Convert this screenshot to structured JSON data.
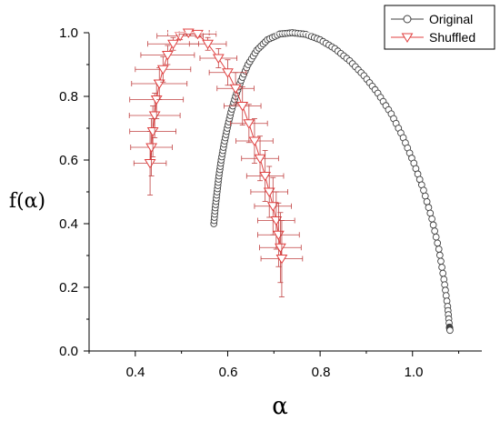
{
  "chart_data": {
    "type": "scatter",
    "title": "",
    "xlabel": "α",
    "ylabel": "f(α)",
    "xlim": [
      0.3,
      1.15
    ],
    "ylim": [
      0.0,
      1.0
    ],
    "x_ticks": [
      "0.4",
      "0.6",
      "0.8",
      "1.0"
    ],
    "y_ticks": [
      "0.0",
      "0.2",
      "0.4",
      "0.6",
      "0.8",
      "1.0"
    ],
    "grid": false,
    "legend_position": "top-right",
    "series": [
      {
        "name": "Original",
        "marker": "circle",
        "color": "#404040",
        "points": [
          [
            0.57,
            0.4
          ],
          [
            0.573,
            0.45
          ],
          [
            0.577,
            0.5
          ],
          [
            0.581,
            0.55
          ],
          [
            0.586,
            0.6
          ],
          [
            0.592,
            0.65
          ],
          [
            0.599,
            0.7
          ],
          [
            0.607,
            0.75
          ],
          [
            0.617,
            0.8
          ],
          [
            0.629,
            0.85
          ],
          [
            0.644,
            0.9
          ],
          [
            0.663,
            0.945
          ],
          [
            0.686,
            0.978
          ],
          [
            0.713,
            0.996
          ],
          [
            0.74,
            1.0
          ],
          [
            0.769,
            0.995
          ],
          [
            0.8,
            0.978
          ],
          [
            0.832,
            0.95
          ],
          [
            0.864,
            0.912
          ],
          [
            0.895,
            0.865
          ],
          [
            0.925,
            0.81
          ],
          [
            0.954,
            0.745
          ],
          [
            0.98,
            0.67
          ],
          [
            1.003,
            0.59
          ],
          [
            1.024,
            0.505
          ],
          [
            1.042,
            0.415
          ],
          [
            1.057,
            0.32
          ],
          [
            1.068,
            0.225
          ],
          [
            1.076,
            0.14
          ],
          [
            1.08,
            0.075
          ],
          [
            1.081,
            0.065
          ]
        ]
      },
      {
        "name": "Shuffled",
        "marker": "triangle-down",
        "color": "#e04040",
        "points": [
          [
            0.432,
            0.59,
            0.035,
            0.1
          ],
          [
            0.435,
            0.64,
            0.045,
            0.09
          ],
          [
            0.438,
            0.69,
            0.05,
            0.08
          ],
          [
            0.442,
            0.74,
            0.055,
            0.07
          ],
          [
            0.446,
            0.79,
            0.058,
            0.06
          ],
          [
            0.452,
            0.84,
            0.06,
            0.05
          ],
          [
            0.46,
            0.885,
            0.06,
            0.04
          ],
          [
            0.47,
            0.93,
            0.058,
            0.03
          ],
          [
            0.482,
            0.965,
            0.055,
            0.02
          ],
          [
            0.497,
            0.99,
            0.05,
            0.012
          ],
          [
            0.515,
            1.0,
            0.045,
            0.008
          ],
          [
            0.535,
            0.996,
            0.04,
            0.01
          ],
          [
            0.557,
            0.965,
            0.04,
            0.02
          ],
          [
            0.58,
            0.92,
            0.04,
            0.03
          ],
          [
            0.6,
            0.875,
            0.04,
            0.04
          ],
          [
            0.617,
            0.825,
            0.04,
            0.05
          ],
          [
            0.632,
            0.77,
            0.04,
            0.06
          ],
          [
            0.646,
            0.715,
            0.04,
            0.06
          ],
          [
            0.658,
            0.66,
            0.04,
            0.07
          ],
          [
            0.67,
            0.605,
            0.04,
            0.07
          ],
          [
            0.681,
            0.55,
            0.04,
            0.08
          ],
          [
            0.69,
            0.5,
            0.04,
            0.08
          ],
          [
            0.698,
            0.455,
            0.04,
            0.09
          ],
          [
            0.705,
            0.41,
            0.04,
            0.09
          ],
          [
            0.71,
            0.365,
            0.045,
            0.1
          ],
          [
            0.714,
            0.325,
            0.045,
            0.11
          ],
          [
            0.717,
            0.29,
            0.045,
            0.12
          ]
        ]
      }
    ]
  }
}
